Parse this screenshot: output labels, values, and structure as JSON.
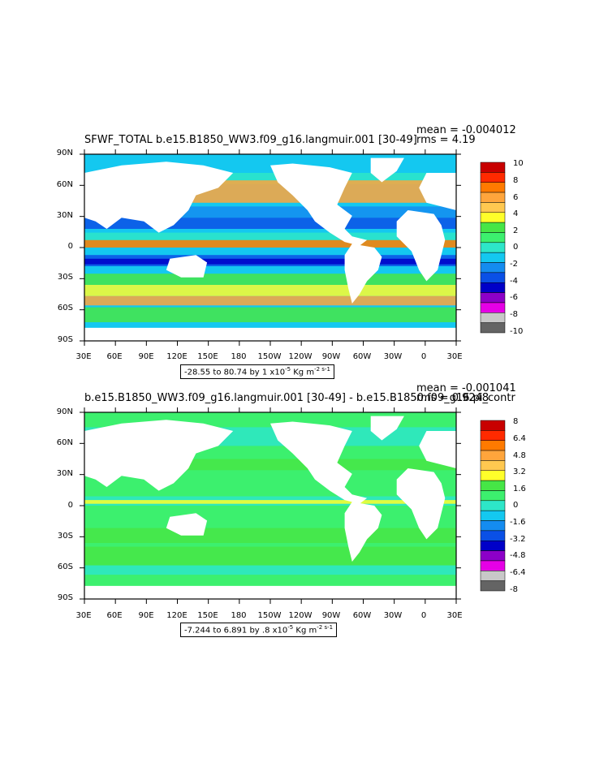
{
  "panel1": {
    "title": "SFWF_TOTAL b.e15.B1850_WW3.f09_g16.langmuir.001 [30-49]",
    "mean": "mean = -0.004012",
    "rms": "rms = 4.19",
    "range_prefix": "-28.55 to 80.74 by 1 x10",
    "range_exp": "-5",
    "range_unit": " Kg m",
    "range_unit_exp": "-2 s-1",
    "colorbar_labels": [
      "10",
      "8",
      "6",
      "4",
      "2",
      "0",
      "-2",
      "-4",
      "-6",
      "-8",
      "-10"
    ],
    "colorbar_colors": [
      "#c80000",
      "#ff2a00",
      "#ff7a00",
      "#ffa53c",
      "#ffc850",
      "#ffff2a",
      "#46e646",
      "#3cf06e",
      "#2de6c8",
      "#14c8f0",
      "#148cf0",
      "#0a50e6",
      "#0000c8",
      "#8c00c8",
      "#e600e6",
      "#c8c8c8",
      "#646464"
    ]
  },
  "panel2": {
    "title": "b.e15.B1850_WW3.f09_g16.langmuir.001 [30-49] - b.e15.B1850.f09_g16.pi_contr",
    "mean": "mean = -0.001041",
    "rms": "rms = 0.9248",
    "range_prefix": "-7.244 to 6.891 by .8 x10",
    "range_exp": "-5",
    "range_unit": " Kg m",
    "range_unit_exp": "-2 s-1",
    "colorbar_labels": [
      "8",
      "6.4",
      "4.8",
      "3.2",
      "1.6",
      "0",
      "-1.6",
      "-3.2",
      "-4.8",
      "-6.4",
      "-8"
    ],
    "colorbar_colors": [
      "#c80000",
      "#ff2a00",
      "#ff7a00",
      "#ffa53c",
      "#ffc850",
      "#ffff2a",
      "#46e646",
      "#3cf06e",
      "#2de6c8",
      "#14c8f0",
      "#148cf0",
      "#0a50e6",
      "#0000c8",
      "#8c00c8",
      "#e600e6",
      "#c8c8c8",
      "#646464"
    ]
  },
  "lat_labels": [
    "90N",
    "60N",
    "30N",
    "0",
    "30S",
    "60S",
    "90S"
  ],
  "lon_labels": [
    "30E",
    "60E",
    "90E",
    "120E",
    "150E",
    "180",
    "150W",
    "120W",
    "90W",
    "60W",
    "30W",
    "0",
    "30E"
  ]
}
